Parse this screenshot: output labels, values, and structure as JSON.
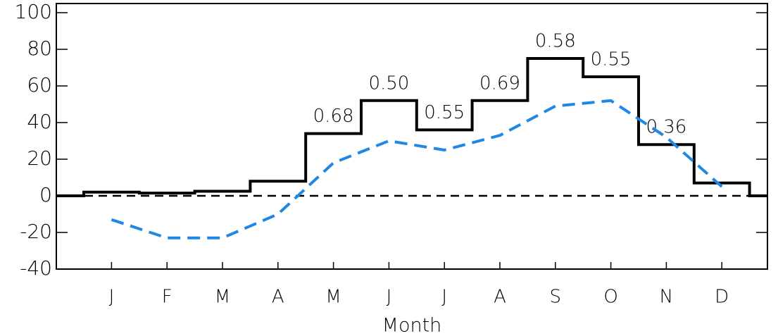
{
  "chart_data": {
    "type": "step",
    "x_label": "Month",
    "categories": [
      "J",
      "F",
      "M",
      "A",
      "M",
      "J",
      "J",
      "A",
      "S",
      "O",
      "N",
      "D"
    ],
    "series": [
      {
        "color": "#000000",
        "values": [
          2,
          1.5,
          2.5,
          8,
          34,
          52,
          36,
          52,
          75,
          65,
          28,
          7
        ],
        "labels": [
          null,
          null,
          null,
          null,
          "0.68",
          "0.50",
          "0.55",
          "0.69",
          "0.58",
          "0.55",
          "0.36",
          null
        ]
      },
      {
        "color": "#1f88e5",
        "dashed": true,
        "values": [
          -13,
          -23,
          -23,
          -10,
          18,
          30,
          25,
          33,
          49,
          52,
          32,
          5
        ]
      }
    ],
    "hline": 0,
    "ylim": [
      -40,
      105
    ],
    "yticks": [
      -40,
      -20,
      0,
      20,
      40,
      60,
      80,
      100
    ]
  }
}
